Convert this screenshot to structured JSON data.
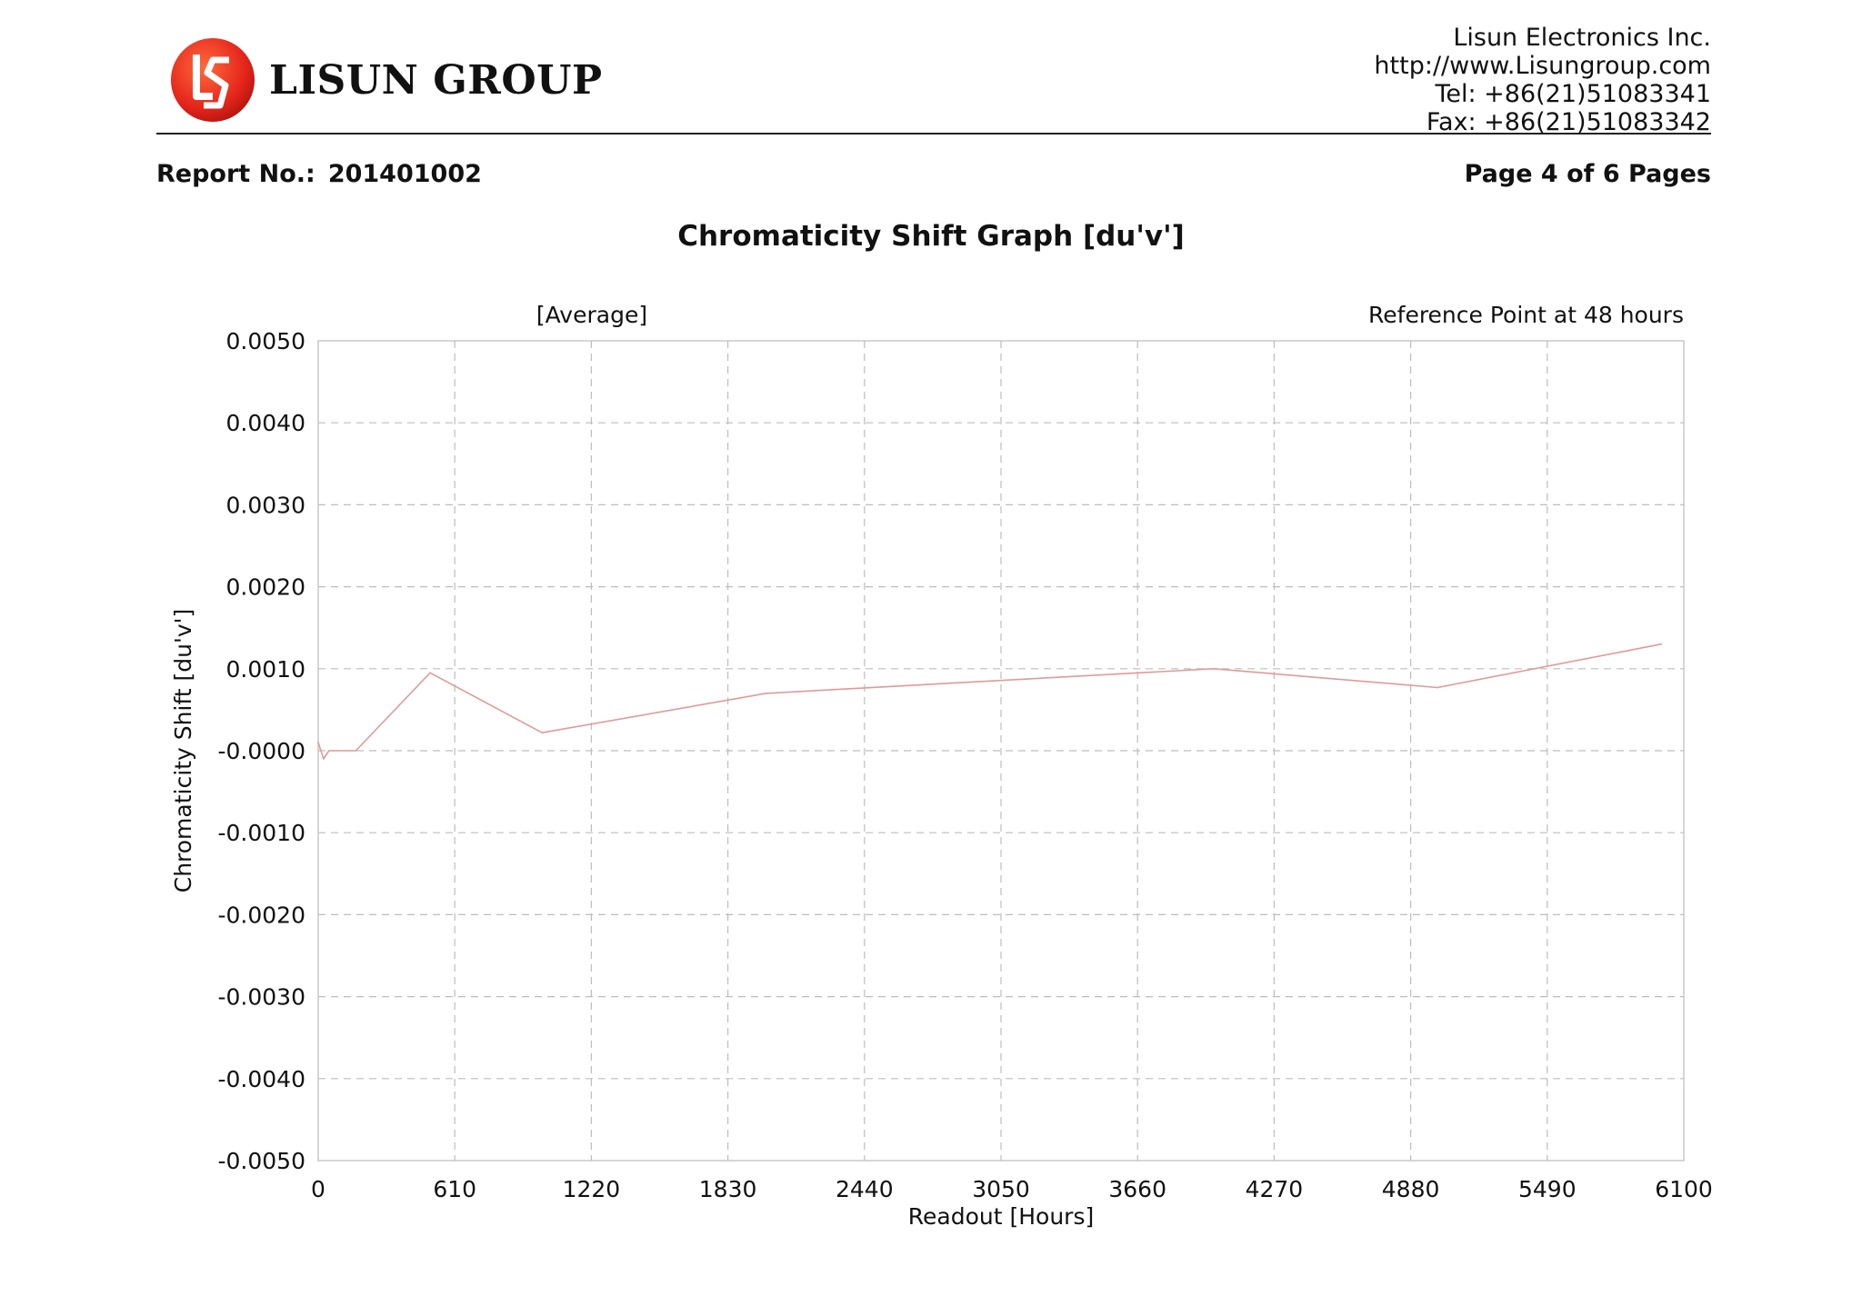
{
  "header": {
    "brand": "LISUN GROUP",
    "company_lines": [
      "Lisun Electronics Inc.",
      "http://www.Lisungroup.com",
      "Tel: +86(21)51083341",
      "Fax: +86(21)51083342"
    ]
  },
  "report": {
    "label": "Report No.:",
    "number": "201401002",
    "page": "Page 4 of 6 Pages"
  },
  "graph_title": "Chromaticity Shift Graph [du'v']",
  "colors": {
    "series": "#e09a9a",
    "grid": "#bdbdbd",
    "frame": "#c9c9c9",
    "logo_red": "#e4251b"
  },
  "chart_data": {
    "type": "line",
    "annotations": {
      "left": "[Average]",
      "right": "Reference Point at 48 hours"
    },
    "xlabel": "Readout [Hours]",
    "ylabel": "Chromaticity Shift [du'v']",
    "xlim": [
      0,
      6100
    ],
    "ylim": [
      -0.005,
      0.005
    ],
    "x_ticks": [
      "0",
      "610",
      "1220",
      "1830",
      "2440",
      "3050",
      "3660",
      "4270",
      "4880",
      "5490",
      "6100"
    ],
    "y_ticks": [
      "0.0050",
      "0.0040",
      "0.0030",
      "0.0020",
      "0.0010",
      "-0.0000",
      "-0.0010",
      "-0.0020",
      "-0.0030",
      "-0.0040",
      "-0.0050"
    ],
    "grid": true,
    "series": [
      {
        "x": [
          0,
          24,
          48,
          168,
          500,
          1000,
          2000,
          4000,
          5000,
          6000
        ],
        "y": [
          0.0001,
          -0.0001,
          0.0,
          0.0,
          0.00095,
          0.00022,
          0.0007,
          0.001,
          0.00077,
          0.0013
        ]
      }
    ]
  }
}
